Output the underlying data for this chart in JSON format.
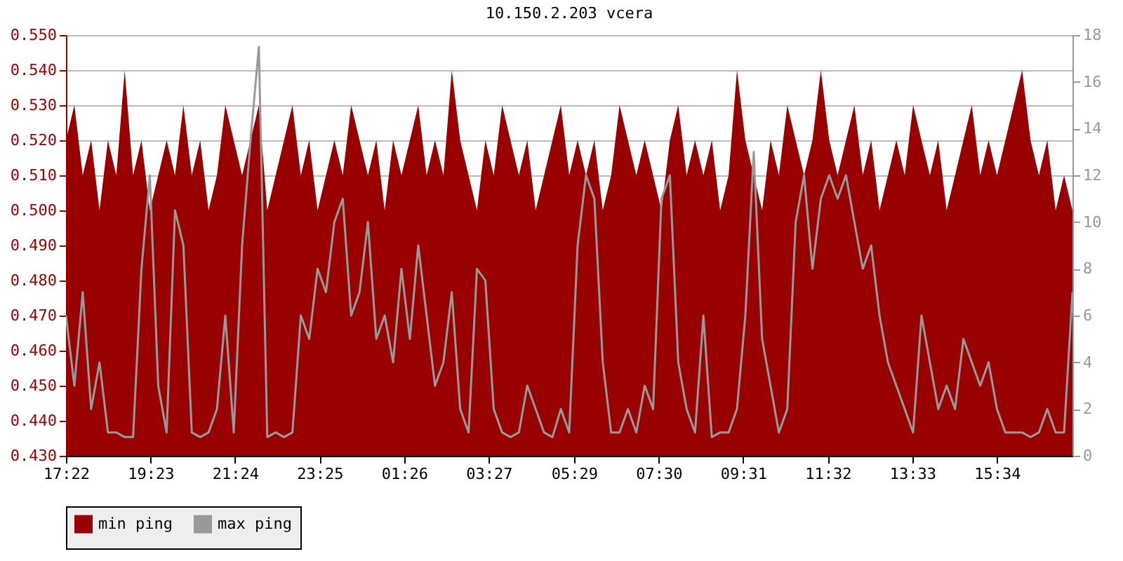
{
  "chart_data": {
    "type": "area",
    "title": "10.150.2.203 vcera",
    "x": [
      "--01-01T17:22",
      "--01-01T17:34",
      "--01-01T17:46",
      "--01-01T17:58",
      "--01-01T18:10",
      "--01-01T18:22",
      "--01-01T18:34",
      "--01-01T18:46",
      "--01-01T18:58",
      "--01-01T19:10",
      "--01-01T19:22",
      "--01-01T19:34",
      "--01-01T19:46",
      "--01-01T19:58",
      "--01-01T20:10",
      "--01-01T20:22",
      "--01-01T20:34",
      "--01-01T20:46",
      "--01-01T20:58",
      "--01-01T21:10",
      "--01-01T21:22",
      "--01-01T21:34",
      "--01-01T21:46",
      "--01-01T21:58",
      "--01-01T22:10",
      "--01-01T22:22",
      "--01-01T22:34",
      "--01-01T22:46",
      "--01-01T22:58",
      "--01-01T23:10",
      "--01-01T23:22",
      "--01-01T23:34",
      "--01-01T23:46",
      "--01-01T23:58",
      "--01-02T00:10",
      "--01-02T00:22",
      "--01-02T00:34",
      "--01-02T00:46",
      "--01-02T00:58",
      "--01-02T01:10",
      "--01-02T01:22",
      "--01-02T01:34",
      "--01-02T01:46",
      "--01-02T01:58",
      "--01-02T02:10",
      "--01-02T02:22",
      "--01-02T02:34",
      "--01-02T02:46",
      "--01-02T02:58",
      "--01-02T03:10",
      "--01-02T03:22",
      "--01-02T03:34",
      "--01-02T03:46",
      "--01-02T03:58",
      "--01-02T04:10",
      "--01-02T04:22",
      "--01-02T04:34",
      "--01-02T04:46",
      "--01-02T04:58",
      "--01-02T05:10",
      "--01-02T05:22",
      "--01-02T05:34",
      "--01-02T05:46",
      "--01-02T05:58",
      "--01-02T06:10",
      "--01-02T06:22",
      "--01-02T06:34",
      "--01-02T06:46",
      "--01-02T06:58",
      "--01-02T07:10",
      "--01-02T07:22",
      "--01-02T07:34",
      "--01-02T07:46",
      "--01-02T07:58",
      "--01-02T08:10",
      "--01-02T08:22",
      "--01-02T08:34",
      "--01-02T08:46",
      "--01-02T08:58",
      "--01-02T09:10",
      "--01-02T09:22",
      "--01-02T09:34",
      "--01-02T09:46",
      "--01-02T09:58",
      "--01-02T10:10",
      "--01-02T10:22",
      "--01-02T10:34",
      "--01-02T10:46",
      "--01-02T10:58",
      "--01-02T11:10",
      "--01-02T11:22",
      "--01-02T11:34",
      "--01-02T11:46",
      "--01-02T11:58",
      "--01-02T12:10",
      "--01-02T12:22",
      "--01-02T12:34",
      "--01-02T12:46",
      "--01-02T12:58",
      "--01-02T13:10",
      "--01-02T13:22",
      "--01-02T13:34",
      "--01-02T13:46",
      "--01-02T13:58",
      "--01-02T14:10",
      "--01-02T14:22",
      "--01-02T14:34",
      "--01-02T14:46",
      "--01-02T14:58",
      "--01-02T15:10",
      "--01-02T15:22",
      "--01-02T15:34",
      "--01-02T15:46",
      "--01-02T15:58",
      "--01-02T16:10",
      "--01-02T16:22",
      "--01-02T16:34",
      "--01-02T16:46",
      "--01-02T16:58",
      "--01-02T17:10",
      "--01-02T17:22"
    ],
    "series": [
      {
        "name": "min ping",
        "color": "#990000",
        "values": [
          0.52,
          0.53,
          0.51,
          0.52,
          0.5,
          0.52,
          0.51,
          0.54,
          0.51,
          0.52,
          0.5,
          0.51,
          0.52,
          0.51,
          0.53,
          0.51,
          0.52,
          0.5,
          0.51,
          0.53,
          0.52,
          0.51,
          0.52,
          0.53,
          0.5,
          0.51,
          0.52,
          0.53,
          0.51,
          0.52,
          0.5,
          0.51,
          0.52,
          0.51,
          0.53,
          0.52,
          0.51,
          0.52,
          0.5,
          0.52,
          0.51,
          0.52,
          0.53,
          0.51,
          0.52,
          0.51,
          0.54,
          0.52,
          0.51,
          0.5,
          0.52,
          0.51,
          0.53,
          0.52,
          0.51,
          0.52,
          0.5,
          0.51,
          0.52,
          0.53,
          0.51,
          0.52,
          0.51,
          0.52,
          0.5,
          0.51,
          0.53,
          0.52,
          0.51,
          0.52,
          0.51,
          0.5,
          0.52,
          0.53,
          0.51,
          0.52,
          0.51,
          0.52,
          0.5,
          0.51,
          0.54,
          0.52,
          0.51,
          0.5,
          0.52,
          0.51,
          0.53,
          0.52,
          0.51,
          0.52,
          0.54,
          0.52,
          0.51,
          0.52,
          0.53,
          0.51,
          0.52,
          0.5,
          0.51,
          0.52,
          0.51,
          0.53,
          0.52,
          0.51,
          0.52,
          0.5,
          0.51,
          0.52,
          0.53,
          0.51,
          0.52,
          0.51,
          0.52,
          0.53,
          0.54,
          0.52,
          0.51,
          0.52,
          0.5,
          0.51,
          0.5
        ]
      },
      {
        "name": "max ping",
        "color": "#999999",
        "axis": "y2",
        "type": "line",
        "values": [
          6,
          3,
          7,
          2,
          4,
          1,
          1,
          0.8,
          0.8,
          8,
          12,
          3,
          1,
          10.5,
          9,
          1,
          0.8,
          1,
          2,
          6,
          1,
          9,
          13.5,
          17.5,
          0.8,
          1,
          0.8,
          1,
          6,
          5,
          8,
          7,
          10,
          11,
          6,
          7,
          10,
          5,
          6,
          4,
          8,
          5,
          9,
          6,
          3,
          4,
          7,
          2,
          1,
          8,
          7.5,
          2,
          1,
          0.8,
          1,
          3,
          2,
          1,
          0.8,
          2,
          1,
          9,
          12,
          11,
          4,
          1,
          1,
          2,
          1,
          3,
          2,
          11,
          12,
          4,
          2,
          1,
          6,
          0.8,
          1,
          1,
          2,
          6,
          13,
          5,
          3,
          1,
          2,
          10,
          12,
          8,
          11,
          12,
          11,
          12,
          10,
          8,
          9,
          6,
          4,
          3,
          2,
          1,
          6,
          4,
          2,
          3,
          2,
          5,
          4,
          3,
          4,
          2,
          1,
          1,
          1,
          0.8,
          1,
          2,
          1,
          1,
          7
        ]
      }
    ],
    "xlim": [
      "--01-01T17:22",
      "--01-02T17:22"
    ],
    "xticks": [
      {
        "value": "--01-01T17:22",
        "label": "17:22"
      },
      {
        "value": "--01-01T19:23",
        "label": "19:23"
      },
      {
        "value": "--01-01T21:24",
        "label": "21:24"
      },
      {
        "value": "--01-01T23:25",
        "label": "23:25"
      },
      {
        "value": "--01-02T01:26",
        "label": "01:26"
      },
      {
        "value": "--01-02T03:27",
        "label": "03:27"
      },
      {
        "value": "--01-02T05:29",
        "label": "05:29"
      },
      {
        "value": "--01-02T07:30",
        "label": "07:30"
      },
      {
        "value": "--01-02T09:31",
        "label": "09:31"
      },
      {
        "value": "--01-02T11:32",
        "label": "11:32"
      },
      {
        "value": "--01-02T13:33",
        "label": "13:33"
      },
      {
        "value": "--01-02T15:34",
        "label": "15:34"
      }
    ],
    "ylim": [
      0.43,
      0.55
    ],
    "yticks": [
      {
        "value": 0.43,
        "label": "0.430"
      },
      {
        "value": 0.44,
        "label": "0.440"
      },
      {
        "value": 0.45,
        "label": "0.450"
      },
      {
        "value": 0.46,
        "label": "0.460"
      },
      {
        "value": 0.47,
        "label": "0.470"
      },
      {
        "value": 0.48,
        "label": "0.480"
      },
      {
        "value": 0.49,
        "label": "0.490"
      },
      {
        "value": 0.5,
        "label": "0.500"
      },
      {
        "value": 0.51,
        "label": "0.510"
      },
      {
        "value": 0.52,
        "label": "0.520"
      },
      {
        "value": 0.53,
        "label": "0.530"
      },
      {
        "value": 0.54,
        "label": "0.540"
      },
      {
        "value": 0.55,
        "label": "0.550"
      }
    ],
    "y2lim": [
      0,
      18
    ],
    "y2ticks": [
      0,
      2,
      4,
      6,
      8,
      10,
      12,
      14,
      16,
      18
    ],
    "grid": "y",
    "legend": "bottom"
  }
}
